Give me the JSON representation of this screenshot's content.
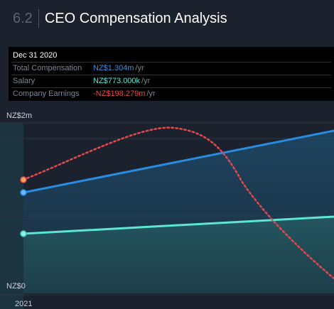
{
  "header": {
    "section_number": "6.2",
    "title": "CEO Compensation Analysis"
  },
  "tooltip": {
    "date": "Dec 31 2020",
    "rows": [
      {
        "label": "Total Compensation",
        "value": "NZ$1.304m",
        "unit": "/yr",
        "color": "#3d8ee0"
      },
      {
        "label": "Salary",
        "value": "NZ$773.000k",
        "unit": "/yr",
        "color": "#5ce6d3"
      },
      {
        "label": "Company Earnings",
        "value": "-NZ$198.279m",
        "unit": "/yr",
        "color": "#e5484d"
      }
    ]
  },
  "chart_data": {
    "type": "line",
    "y_tick_labels": [
      "NZ$2m",
      "NZ$0"
    ],
    "x_tick_labels": [
      "2021"
    ],
    "series": [
      {
        "name": "Total Compensation",
        "color": "#2a8be0",
        "style": "solid",
        "fill": true,
        "start_value": 1.304
      },
      {
        "name": "Salary",
        "color": "#5ce6d3",
        "style": "solid",
        "fill": true,
        "start_value": 0.773
      },
      {
        "name": "Company Earnings",
        "color": "#e5484d",
        "style": "dotted",
        "fill": false
      }
    ],
    "colors": {
      "background": "#1b222d",
      "hover_band": "#1d3a47"
    }
  }
}
